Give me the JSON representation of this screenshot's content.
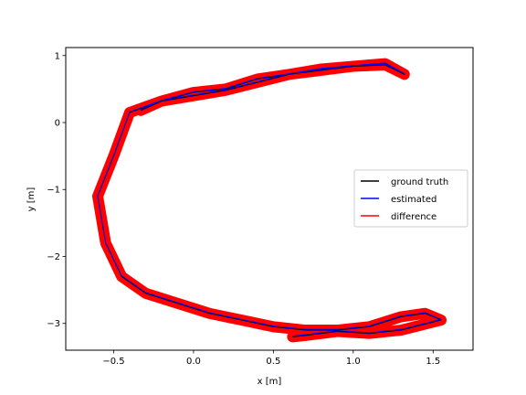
{
  "chart_data": {
    "type": "line",
    "title": "",
    "xlabel": "x [m]",
    "ylabel": "y [m]",
    "xlim": [
      -0.8,
      1.75
    ],
    "ylim": [
      -3.4,
      1.12
    ],
    "x_ticks": [
      -0.5,
      0.0,
      0.5,
      1.0,
      1.5
    ],
    "x_tick_labels": [
      "−0.5",
      "0.0",
      "0.5",
      "1.0",
      "1.5"
    ],
    "y_ticks": [
      1,
      0,
      -1,
      -2,
      -3
    ],
    "y_tick_labels": [
      "1",
      "0",
      "−1",
      "−2",
      "−3"
    ],
    "grid": false,
    "legend_position": "center-right",
    "series": [
      {
        "name": "ground truth",
        "color": "#000000",
        "x": [
          -0.33,
          -0.2,
          0.0,
          0.2,
          0.4,
          0.6,
          0.8,
          1.0,
          1.2,
          1.32,
          1.2,
          1.0,
          0.8,
          0.6,
          0.4,
          0.2,
          0.0,
          -0.2,
          -0.4,
          -0.5,
          -0.6,
          -0.55,
          -0.45,
          -0.3,
          -0.1,
          0.1,
          0.3,
          0.5,
          0.7,
          0.9,
          1.1,
          1.3,
          1.45,
          1.55,
          1.3,
          1.1,
          0.9,
          0.7,
          0.62
        ],
        "y": [
          0.18,
          0.32,
          0.45,
          0.5,
          0.65,
          0.72,
          0.8,
          0.84,
          0.88,
          0.72,
          0.86,
          0.84,
          0.78,
          0.72,
          0.6,
          0.48,
          0.4,
          0.32,
          0.15,
          -0.5,
          -1.1,
          -1.8,
          -2.3,
          -2.55,
          -2.7,
          -2.85,
          -2.95,
          -3.05,
          -3.1,
          -3.1,
          -3.05,
          -2.9,
          -2.85,
          -2.95,
          -3.1,
          -3.15,
          -3.12,
          -3.18,
          -3.2
        ]
      },
      {
        "name": "estimated",
        "color": "#0000ff",
        "x": [
          -0.33,
          -0.2,
          0.0,
          0.2,
          0.4,
          0.6,
          0.8,
          1.0,
          1.2,
          1.32,
          1.2,
          1.0,
          0.8,
          0.6,
          0.4,
          0.2,
          0.0,
          -0.2,
          -0.4,
          -0.5,
          -0.6,
          -0.55,
          -0.45,
          -0.3,
          -0.1,
          0.1,
          0.3,
          0.5,
          0.7,
          0.9,
          1.1,
          1.3,
          1.45,
          1.55,
          1.3,
          1.1,
          0.9,
          0.7,
          0.62
        ],
        "y": [
          0.19,
          0.33,
          0.46,
          0.51,
          0.66,
          0.73,
          0.81,
          0.85,
          0.89,
          0.73,
          0.87,
          0.85,
          0.79,
          0.73,
          0.61,
          0.49,
          0.41,
          0.33,
          0.16,
          -0.49,
          -1.09,
          -1.79,
          -2.29,
          -2.54,
          -2.69,
          -2.84,
          -2.94,
          -3.04,
          -3.09,
          -3.09,
          -3.04,
          -2.89,
          -2.84,
          -2.94,
          -3.09,
          -3.14,
          -3.11,
          -3.17,
          -3.19
        ]
      },
      {
        "name": "difference",
        "color": "#ff0000"
      }
    ]
  }
}
